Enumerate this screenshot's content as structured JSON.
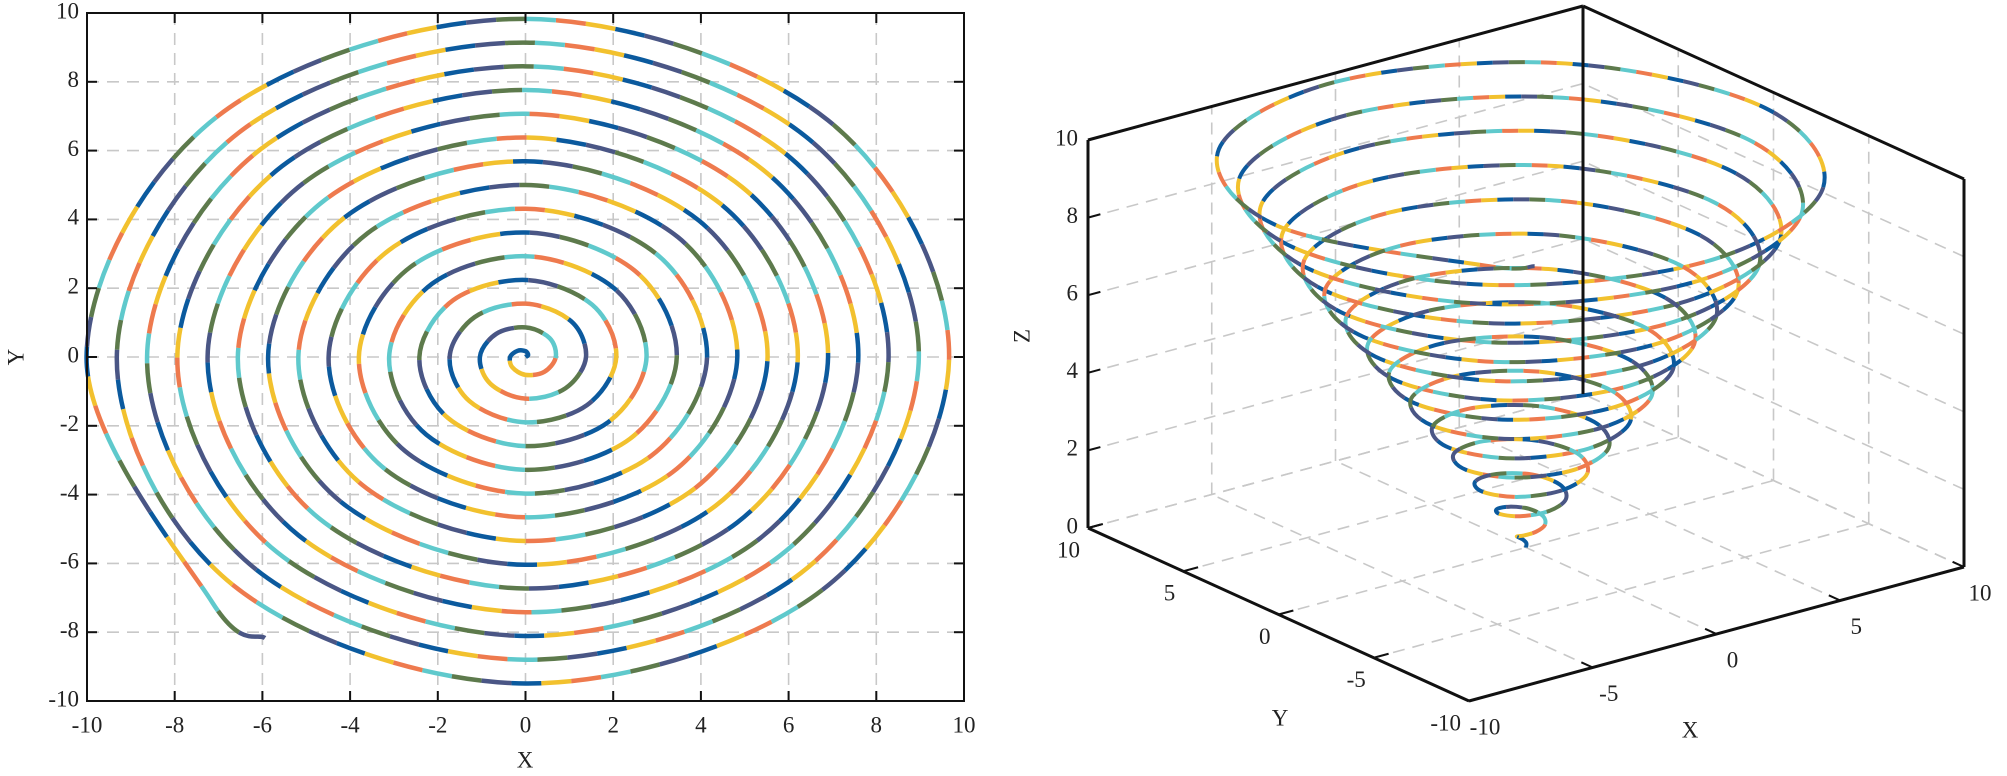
{
  "chart_data": [
    {
      "type": "line",
      "xlabel": "X",
      "ylabel": "Y",
      "x": [
        0,
        0.06,
        0,
        -0.18,
        -0.35,
        -0.3,
        0,
        0.43,
        0.69,
        0.55,
        0,
        -0.67,
        -1.04,
        -0.79,
        0,
        0.91,
        1.38,
        1.04,
        0,
        -1.16,
        -1.73,
        -1.28,
        0,
        1.4,
        2.07,
        1.52,
        0,
        -1.65,
        -2.42,
        -1.77,
        0,
        1.89,
        2.76,
        2.01,
        0,
        -2.13,
        -3.11,
        -2.26,
        0,
        2.38,
        3.45,
        2.5,
        0,
        -2.62,
        -3.8,
        -2.74,
        0,
        2.87,
        4.14,
        2.99,
        0,
        -3.11,
        -4.49,
        -3.23,
        0,
        3.35,
        4.83,
        3.48,
        0,
        -3.6,
        -5.18,
        -3.72,
        0,
        3.84,
        5.52,
        3.96,
        0,
        -4.09,
        -5.87,
        -4.21,
        0,
        4.33,
        6.21,
        4.45,
        0,
        -4.57,
        -6.56,
        -4.7,
        0,
        4.82,
        6.9,
        4.94,
        0,
        -5.06,
        -7.25,
        -5.18,
        0,
        5.31,
        7.59,
        5.43,
        0,
        -5.55,
        -7.94,
        -5.67,
        0,
        5.79,
        8.28,
        5.92,
        0,
        -6.04,
        -8.63,
        -6.16,
        0,
        6.28,
        8.97,
        6.4,
        0,
        -6.53,
        -9.32,
        -6.65,
        0,
        6.77,
        9.66,
        6.89,
        0,
        -7.01,
        -10.01,
        -7.14,
        -5.94
      ],
      "values": [
        0,
        0.06,
        0.17,
        0.18,
        0,
        -0.3,
        -0.52,
        -0.43,
        0,
        0.55,
        0.86,
        0.67,
        0,
        -0.79,
        -1.21,
        -0.91,
        0,
        1.04,
        1.55,
        1.16,
        0,
        -1.28,
        -1.9,
        -1.4,
        0,
        1.52,
        2.24,
        1.65,
        0,
        -1.77,
        -2.59,
        -1.89,
        0,
        2.01,
        2.93,
        2.13,
        0,
        -2.26,
        -3.28,
        -2.38,
        0,
        2.5,
        3.62,
        2.62,
        0,
        -2.74,
        -3.97,
        -2.87,
        0,
        2.99,
        4.31,
        3.11,
        0,
        -3.23,
        -4.66,
        -3.35,
        0,
        3.48,
        5,
        3.6,
        0,
        -3.72,
        -5.35,
        -3.84,
        0,
        3.96,
        5.69,
        4.09,
        0,
        -4.21,
        -6.04,
        -4.33,
        0,
        4.45,
        6.38,
        4.57,
        0,
        -4.7,
        -6.73,
        -4.82,
        0,
        4.94,
        7.07,
        5.06,
        0,
        -5.18,
        -7.42,
        -5.31,
        0,
        5.43,
        7.76,
        5.55,
        0,
        -5.67,
        -8.11,
        -5.79,
        0,
        5.92,
        8.45,
        6.04,
        0,
        -6.16,
        -8.8,
        -6.28,
        0,
        6.4,
        9.14,
        6.53,
        0,
        -6.65,
        -9.49,
        -6.77,
        0,
        6.89,
        9.83,
        7.01,
        0,
        -7.14,
        -8.17
      ],
      "colors": [
        "#0b5a9e",
        "#f2c12e",
        "#ee7a4e",
        "#5fc9cc",
        "#5d7a4c",
        "#4a5685"
      ],
      "xlim": [
        -10,
        10
      ],
      "ylim": [
        -10,
        10
      ],
      "xticks": [
        -10,
        -8,
        -6,
        -4,
        -2,
        0,
        2,
        4,
        6,
        8,
        10
      ],
      "yticks": [
        -10,
        -8,
        -6,
        -4,
        -2,
        0,
        2,
        4,
        6,
        8,
        10
      ],
      "grid": true
    },
    {
      "type": "line3d",
      "xlabel": "X",
      "ylabel": "Y",
      "zlabel": "Z",
      "x": [
        0,
        0.06,
        0,
        -0.18,
        -0.35,
        -0.3,
        0,
        0.43,
        0.69,
        0.55,
        0,
        -0.67,
        -1.04,
        -0.79,
        0,
        0.91,
        1.38,
        1.04,
        0,
        -1.16,
        -1.73,
        -1.28,
        0,
        1.4,
        2.07,
        1.52,
        0,
        -1.65,
        -2.42,
        -1.77,
        0,
        1.89,
        2.76,
        2.01,
        0,
        -2.13,
        -3.11,
        -2.26,
        0,
        2.38,
        3.45,
        2.5,
        0,
        -2.62,
        -3.8,
        -2.74,
        0,
        2.87,
        4.14,
        2.99,
        0,
        -3.11,
        -4.49,
        -3.23,
        0,
        3.35,
        4.83,
        3.48,
        0,
        -3.6,
        -5.18,
        -3.72,
        0,
        3.84,
        5.52,
        3.96,
        0,
        -4.09,
        -5.87,
        -4.21,
        0,
        4.33,
        6.21,
        4.45,
        0,
        -4.57,
        -6.56,
        -4.7,
        0,
        4.82,
        6.9,
        4.94,
        0,
        -5.06,
        -7.25,
        -5.18,
        0,
        5.31,
        7.59,
        5.43,
        0,
        -5.55,
        -7.94,
        -5.67,
        0,
        5.79,
        8.28,
        5.92,
        0,
        -6.04,
        -8.63,
        -6.16,
        0,
        6.28,
        8.97,
        6.4,
        0,
        -6.53,
        -9.32,
        -6.65,
        0,
        6.77,
        9.66,
        6.89,
        0,
        -7.01,
        -10.01,
        -7.14,
        -5.94
      ],
      "y": [
        0,
        0.06,
        0.17,
        0.18,
        0,
        -0.3,
        -0.52,
        -0.43,
        0,
        0.55,
        0.86,
        0.67,
        0,
        -0.79,
        -1.21,
        -0.91,
        0,
        1.04,
        1.55,
        1.16,
        0,
        -1.28,
        -1.9,
        -1.4,
        0,
        1.52,
        2.24,
        1.65,
        0,
        -1.77,
        -2.59,
        -1.89,
        0,
        2.01,
        2.93,
        2.13,
        0,
        -2.26,
        -3.28,
        -2.38,
        0,
        2.5,
        3.62,
        2.62,
        0,
        -2.74,
        -3.97,
        -2.87,
        0,
        2.99,
        4.31,
        3.11,
        0,
        -3.23,
        -4.66,
        -3.35,
        0,
        3.48,
        5,
        3.6,
        0,
        -3.72,
        -5.35,
        -3.84,
        0,
        3.96,
        5.69,
        4.09,
        0,
        -4.21,
        -6.04,
        -4.33,
        0,
        4.45,
        6.38,
        4.57,
        0,
        -4.7,
        -6.73,
        -4.82,
        0,
        4.94,
        7.07,
        5.06,
        0,
        -5.18,
        -7.42,
        -5.31,
        0,
        5.43,
        7.76,
        5.55,
        0,
        -5.67,
        -8.11,
        -5.79,
        0,
        5.92,
        8.45,
        6.04,
        0,
        -6.16,
        -8.8,
        -6.28,
        0,
        6.4,
        9.14,
        6.53,
        0,
        -6.65,
        -9.49,
        -6.77,
        0,
        6.89,
        9.83,
        7.01,
        0,
        -7.14,
        -8.17
      ],
      "z": [
        0,
        0.09,
        0.17,
        0.26,
        0.35,
        0.43,
        0.52,
        0.6,
        0.69,
        0.78,
        0.86,
        0.95,
        1.04,
        1.12,
        1.21,
        1.29,
        1.38,
        1.47,
        1.55,
        1.64,
        1.73,
        1.81,
        1.9,
        1.98,
        2.07,
        2.16,
        2.24,
        2.33,
        2.42,
        2.5,
        2.59,
        2.67,
        2.76,
        2.85,
        2.93,
        3.02,
        3.11,
        3.19,
        3.28,
        3.36,
        3.45,
        3.54,
        3.62,
        3.71,
        3.8,
        3.88,
        3.97,
        4.05,
        4.14,
        4.23,
        4.31,
        4.4,
        4.49,
        4.57,
        4.66,
        4.74,
        4.83,
        4.92,
        5,
        5.09,
        5.18,
        5.26,
        5.35,
        5.43,
        5.52,
        5.61,
        5.69,
        5.78,
        5.87,
        5.95,
        6.04,
        6.12,
        6.21,
        6.3,
        6.38,
        6.47,
        6.56,
        6.64,
        6.73,
        6.81,
        6.9,
        6.99,
        7.07,
        7.16,
        7.25,
        7.33,
        7.42,
        7.5,
        7.59,
        7.68,
        7.76,
        7.85,
        7.94,
        8.02,
        8.11,
        8.19,
        8.28,
        8.37,
        8.45,
        8.54,
        8.63,
        8.71,
        8.8,
        8.88,
        8.97,
        9.06,
        9.14,
        9.23,
        9.32,
        9.4,
        9.49,
        9.57,
        9.66,
        9.75,
        9.83,
        9.92,
        10.01,
        10.09,
        10.1
      ],
      "colors": [
        "#0b5a9e",
        "#f2c12e",
        "#ee7a4e",
        "#5fc9cc",
        "#5d7a4c",
        "#4a5685"
      ],
      "xlim": [
        -10,
        10
      ],
      "ylim": [
        -10,
        10
      ],
      "zlim": [
        0,
        10
      ],
      "xticks": [
        -10,
        -5,
        0,
        5,
        10
      ],
      "yticks": [
        -10,
        -5,
        0,
        5,
        10
      ],
      "zticks": [
        0,
        2,
        4,
        6,
        8,
        10
      ],
      "grid": true
    }
  ]
}
